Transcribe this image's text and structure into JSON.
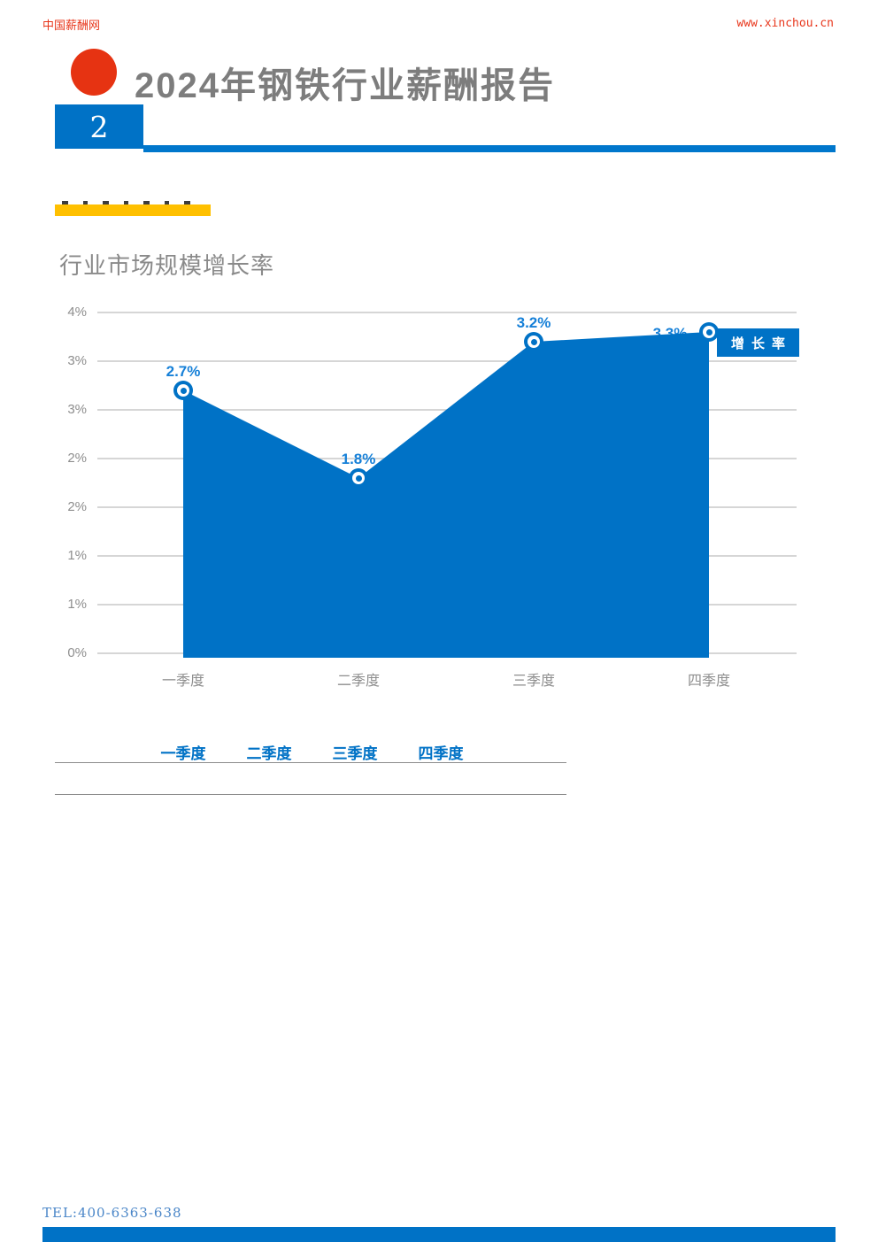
{
  "header": {
    "site_name": "中国薪酬网",
    "site_url": "www.xinchou.cn",
    "title": "2024年钢铁行业薪酬报告",
    "page_number": "2",
    "brand_red": "#e8351a",
    "accent_blue": "#0072c6"
  },
  "section": {
    "highlight_color": "#ffc000"
  },
  "chart_data": {
    "type": "area",
    "title": "行业市场规模增长率",
    "categories": [
      "一季度",
      "二季度",
      "三季度",
      "四季度"
    ],
    "series": [
      {
        "name": "增长率",
        "values": [
          2.7,
          1.8,
          3.2,
          3.3
        ]
      }
    ],
    "data_labels": [
      "2.7%",
      "1.8%",
      "3.2%",
      "3.3%"
    ],
    "ylim": [
      0,
      3.5
    ],
    "ytick_labels_top_to_bottom": [
      "4%",
      "3%",
      "3%",
      "2%",
      "2%",
      "1%",
      "1%",
      "0%"
    ],
    "grid": true,
    "legend": {
      "label": "增长率",
      "position": "right"
    },
    "fill_color": "#0072c6",
    "data_label_color": "#1680d8"
  },
  "table": {
    "headers": [
      "一季度",
      "二季度",
      "三季度",
      "四季度"
    ],
    "header_color": "#0072c6"
  },
  "footer": {
    "tel": "TEL:400-6363-638",
    "bar_color": "#0072c6"
  }
}
